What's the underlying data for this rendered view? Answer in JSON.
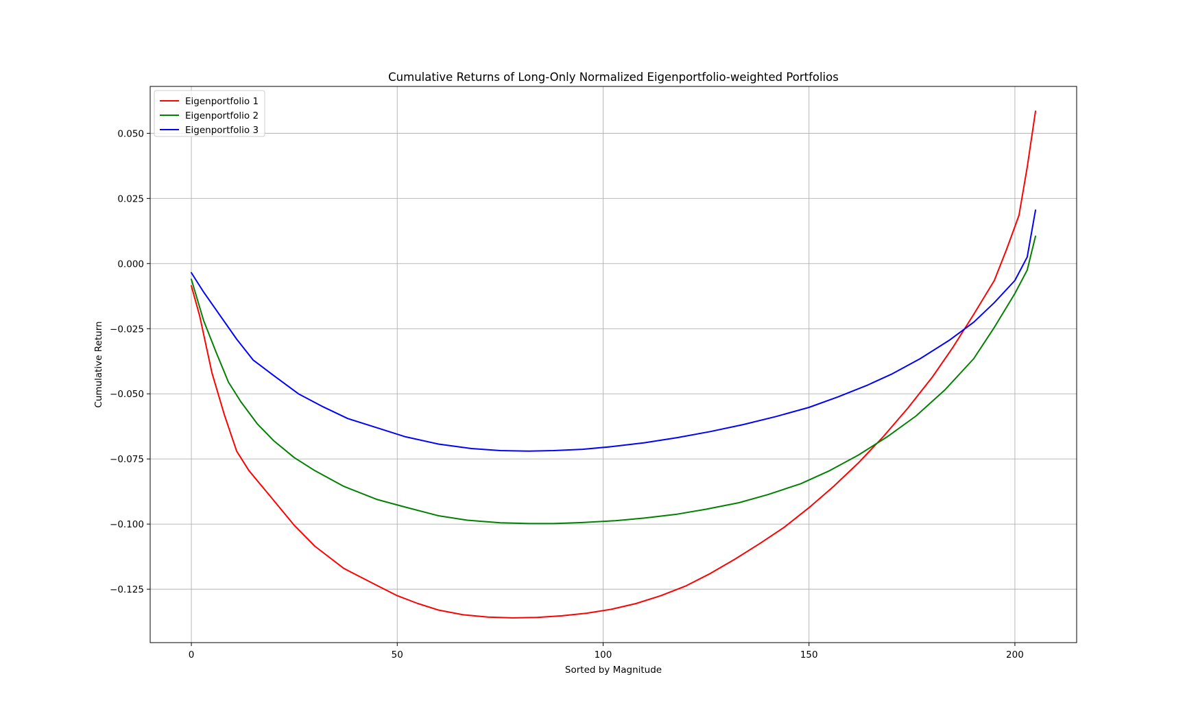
{
  "chart_data": {
    "type": "line",
    "title": "Cumulative Returns of Long-Only Normalized Eigenportfolio-weighted Portfolios",
    "xlabel": "Sorted by Magnitude",
    "ylabel": "Cumulative Return",
    "xlim": [
      -10,
      215
    ],
    "ylim": [
      -0.1455,
      0.068
    ],
    "x_ticks": [
      0,
      50,
      100,
      150,
      200
    ],
    "x_tick_labels": [
      "0",
      "50",
      "100",
      "150",
      "200"
    ],
    "y_ticks": [
      -0.125,
      -0.1,
      -0.075,
      -0.05,
      -0.025,
      0.0,
      0.025,
      0.05
    ],
    "y_tick_labels": [
      "−0.125",
      "−0.100",
      "−0.075",
      "−0.050",
      "−0.025",
      "0.000",
      "0.025",
      "0.050"
    ],
    "grid": true,
    "legend_position": "top-left",
    "series": [
      {
        "name": "Eigenportfolio 1",
        "color": "#ff0000",
        "x": [
          0,
          2,
          5,
          8,
          11,
          14,
          19,
          25,
          30,
          37,
          45,
          50,
          55,
          60,
          66,
          72,
          78,
          84,
          90,
          96,
          102,
          108,
          114,
          120,
          126,
          132,
          138,
          144,
          150,
          156,
          162,
          168,
          174,
          180,
          185,
          190,
          195,
          198,
          201,
          203,
          205
        ],
        "y": [
          -0.0085,
          -0.02,
          -0.042,
          -0.058,
          -0.072,
          -0.0795,
          -0.089,
          -0.1005,
          -0.1085,
          -0.117,
          -0.1235,
          -0.1275,
          -0.1305,
          -0.133,
          -0.1348,
          -0.1357,
          -0.136,
          -0.1358,
          -0.1352,
          -0.1342,
          -0.1327,
          -0.1305,
          -0.1275,
          -0.1238,
          -0.119,
          -0.1135,
          -0.1075,
          -0.1012,
          -0.0937,
          -0.0855,
          -0.0765,
          -0.0665,
          -0.0555,
          -0.0435,
          -0.032,
          -0.0195,
          -0.0065,
          0.0055,
          0.0185,
          0.037,
          0.0585
        ]
      },
      {
        "name": "Eigenportfolio 2",
        "color": "#008000",
        "x": [
          0,
          3,
          6,
          9,
          12,
          16,
          20,
          25,
          30,
          37,
          45,
          52,
          60,
          67,
          75,
          82,
          88,
          95,
          103,
          110,
          118,
          125,
          133,
          140,
          148,
          155,
          162,
          169,
          176,
          183,
          190,
          195,
          200,
          203,
          205
        ],
        "y": [
          -0.006,
          -0.022,
          -0.034,
          -0.0455,
          -0.053,
          -0.0615,
          -0.068,
          -0.0745,
          -0.0795,
          -0.0855,
          -0.0905,
          -0.0935,
          -0.0968,
          -0.0985,
          -0.0995,
          -0.0998,
          -0.0998,
          -0.0994,
          -0.0987,
          -0.0977,
          -0.0962,
          -0.0943,
          -0.0918,
          -0.0887,
          -0.0845,
          -0.0795,
          -0.0735,
          -0.0665,
          -0.0585,
          -0.0485,
          -0.0365,
          -0.0245,
          -0.0115,
          -0.0025,
          0.0105
        ]
      },
      {
        "name": "Eigenportfolio 3",
        "color": "#0000ff",
        "x": [
          0,
          3,
          7,
          11,
          15,
          20,
          26,
          32,
          38,
          45,
          52,
          60,
          68,
          75,
          82,
          88,
          95,
          102,
          110,
          118,
          126,
          134,
          142,
          150,
          157,
          164,
          170,
          177,
          184,
          190,
          195,
          200,
          203,
          205
        ],
        "y": [
          -0.0035,
          -0.011,
          -0.02,
          -0.029,
          -0.037,
          -0.043,
          -0.05,
          -0.055,
          -0.0595,
          -0.063,
          -0.0665,
          -0.0693,
          -0.071,
          -0.0718,
          -0.072,
          -0.0718,
          -0.0713,
          -0.0703,
          -0.0688,
          -0.0668,
          -0.0645,
          -0.0618,
          -0.0587,
          -0.0552,
          -0.0512,
          -0.0468,
          -0.0425,
          -0.0365,
          -0.0295,
          -0.0225,
          -0.015,
          -0.0065,
          0.0025,
          0.0205
        ]
      }
    ]
  }
}
